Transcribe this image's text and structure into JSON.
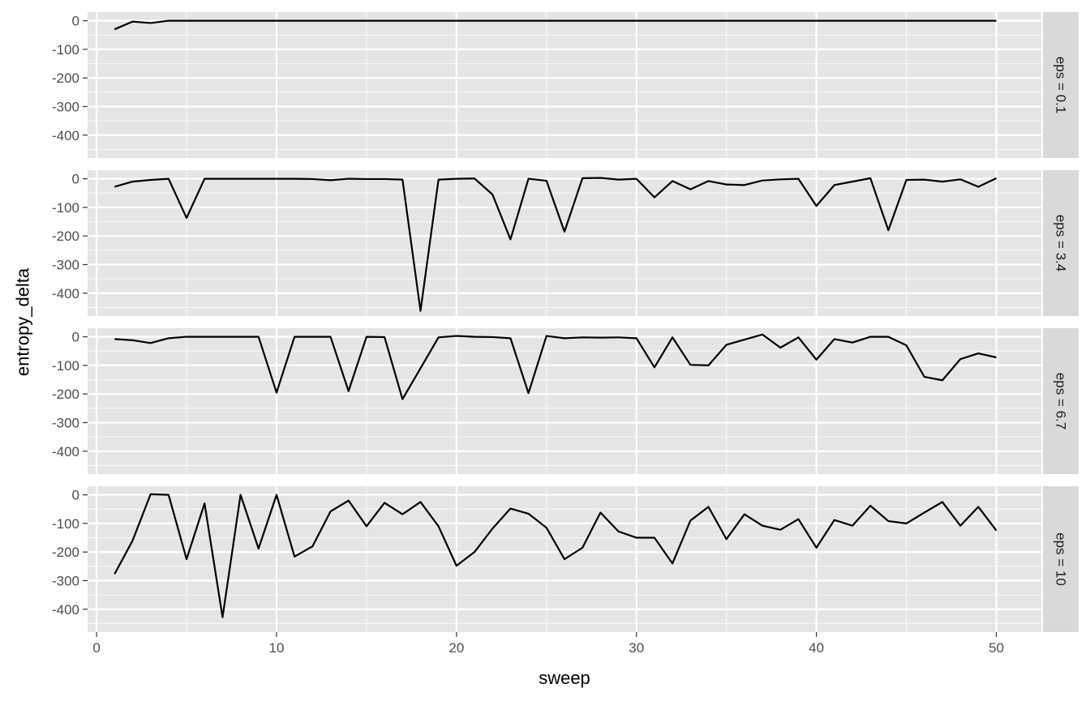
{
  "chart_data": {
    "type": "line",
    "facet": "rows",
    "xlabel": "sweep",
    "ylabel": "entropy_delta",
    "xlim": [
      -0.5,
      52.5
    ],
    "ylim": [
      -480,
      30
    ],
    "x_ticks": [
      0,
      10,
      20,
      30,
      40,
      50
    ],
    "y_ticks": [
      0,
      -100,
      -200,
      -300,
      -400
    ],
    "grid": true,
    "line_color": "#000000",
    "panel_background": "#e5e5e5",
    "strip_background": "#d9d9d9",
    "x": [
      1,
      2,
      3,
      4,
      5,
      6,
      7,
      8,
      9,
      10,
      11,
      12,
      13,
      14,
      15,
      16,
      17,
      18,
      19,
      20,
      21,
      22,
      23,
      24,
      25,
      26,
      27,
      28,
      29,
      30,
      31,
      32,
      33,
      34,
      35,
      36,
      37,
      38,
      39,
      40,
      41,
      42,
      43,
      44,
      45,
      46,
      47,
      48,
      49,
      50
    ],
    "series": [
      {
        "name": "eps = 0.1",
        "values": [
          -30,
          -3,
          -8,
          0,
          0,
          0,
          0,
          0,
          0,
          0,
          0,
          0,
          0,
          0,
          0,
          0,
          0,
          0,
          0,
          0,
          0,
          0,
          0,
          0,
          0,
          0,
          0,
          0,
          0,
          0,
          0,
          0,
          0,
          0,
          0,
          0,
          0,
          0,
          0,
          0,
          0,
          0,
          0,
          0,
          0,
          0,
          0,
          0,
          0,
          0
        ]
      },
      {
        "name": "eps = 3.4",
        "values": [
          -28,
          -10,
          -4,
          0,
          -137,
          0,
          0,
          0,
          0,
          0,
          0,
          -1,
          -5,
          0,
          -1,
          -1,
          -3,
          -462,
          -3,
          0,
          1,
          -55,
          -212,
          0,
          -7,
          -185,
          2,
          3,
          -3,
          0,
          -65,
          -8,
          -37,
          -8,
          -20,
          -22,
          -6,
          -2,
          0,
          -95,
          -22,
          -10,
          2,
          -180,
          -4,
          -3,
          -10,
          -2,
          -28,
          2
        ]
      },
      {
        "name": "eps = 6.7",
        "values": [
          -8,
          -12,
          -22,
          -5,
          0,
          0,
          0,
          0,
          0,
          -195,
          0,
          0,
          0,
          -190,
          0,
          -1,
          -218,
          -110,
          -2,
          3,
          0,
          -1,
          -5,
          -197,
          3,
          -5,
          -2,
          -3,
          -2,
          -5,
          -107,
          -2,
          -98,
          -100,
          -28,
          -10,
          8,
          -38,
          -2,
          -80,
          -8,
          -20,
          0,
          0,
          -30,
          -140,
          -152,
          -78,
          -58,
          -72
        ]
      },
      {
        "name": "eps = 10",
        "values": [
          -277,
          -160,
          2,
          0,
          -225,
          -30,
          -428,
          0,
          -188,
          0,
          -216,
          -180,
          -58,
          -20,
          -110,
          -28,
          -68,
          -25,
          -110,
          -248,
          -200,
          -118,
          -48,
          -66,
          -115,
          -225,
          -185,
          -62,
          -128,
          -150,
          -150,
          -240,
          -90,
          -42,
          -155,
          -68,
          -108,
          -122,
          -85,
          -185,
          -88,
          -108,
          -38,
          -92,
          -100,
          -62,
          -25,
          -108,
          -42,
          -125
        ]
      }
    ]
  }
}
